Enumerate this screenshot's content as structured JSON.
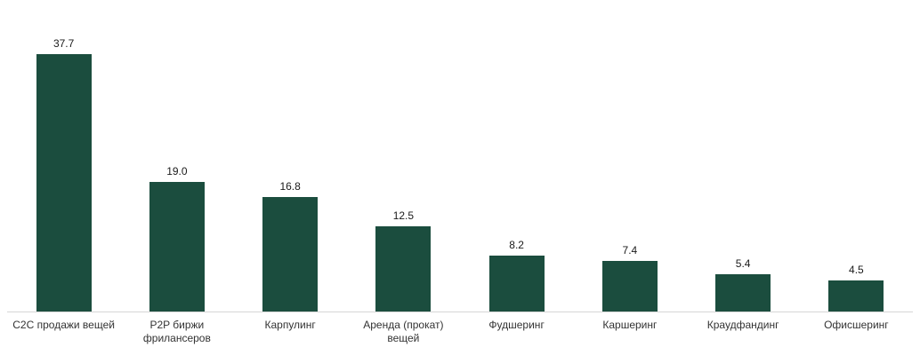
{
  "chart_data": {
    "type": "bar",
    "categories": [
      "C2C продажи вещей",
      "P2P биржи фрилансеров",
      "Карпулинг",
      "Аренда (прокат) вещей",
      "Фудшеринг",
      "Каршеринг",
      "Краудфандинг",
      "Офисшеринг"
    ],
    "values": [
      37.7,
      19.0,
      16.8,
      12.5,
      8.2,
      7.4,
      5.4,
      4.5
    ],
    "title": "",
    "xlabel": "",
    "ylabel": "",
    "ylim": [
      0,
      40
    ],
    "grid": false,
    "legend": false,
    "value_labels_shown": true,
    "value_label_decimals": 1,
    "bar_color": "#1b4d3e",
    "baseline_color": "#d6d6d6",
    "text_color": "#1a1a1a"
  }
}
